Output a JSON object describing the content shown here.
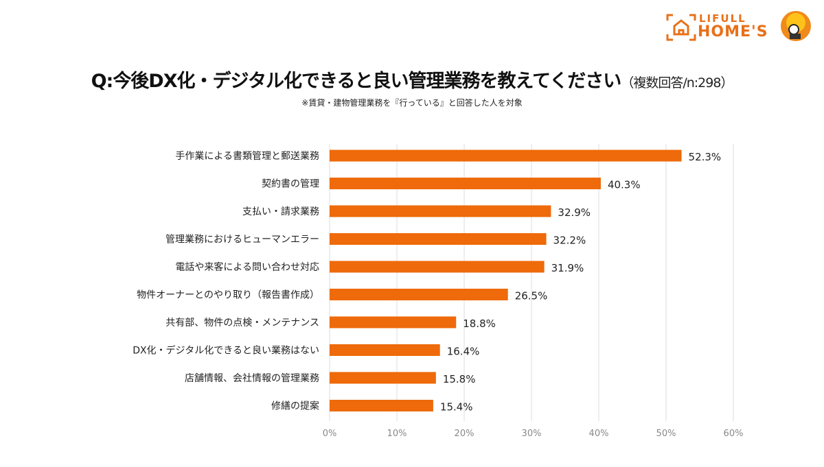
{
  "title": "Q:今後DX化・デジタル化できると良い管理業務を教えてください",
  "title_note": "（複数回答/n:298）",
  "subtitle": "※賃貸・建物管理業務を『行っている』と回答した人を対象",
  "logo": {
    "line1": "LIFULL",
    "line2": "HOME'S"
  },
  "colors": {
    "bar": "#ee6a0a",
    "grid": "#dddddd",
    "brand": "#e8701a"
  },
  "chart_data": {
    "type": "bar",
    "orientation": "horizontal",
    "categories": [
      "手作業による書類管理と郵送業務",
      "契約書の管理",
      "支払い・請求業務",
      "管理業務におけるヒューマンエラー",
      "電話や来客による問い合わせ対応",
      "物件オーナーとのやり取り（報告書作成）",
      "共有部、物件の点検・メンテナンス",
      "DX化・デジタル化できると良い業務はない",
      "店舗情報、会社情報の管理業務",
      "修繕の提案"
    ],
    "values": [
      52.3,
      40.3,
      32.9,
      32.2,
      31.9,
      26.5,
      18.8,
      16.4,
      15.8,
      15.4
    ],
    "data_labels": [
      "52.3%",
      "40.3%",
      "32.9%",
      "32.2%",
      "31.9%",
      "26.5%",
      "18.8%",
      "16.4%",
      "15.8%",
      "15.4%"
    ],
    "xlim": [
      0,
      60
    ],
    "xticks": [
      "0%",
      "10%",
      "20%",
      "30%",
      "40%",
      "50%",
      "60%"
    ],
    "grid": true
  }
}
